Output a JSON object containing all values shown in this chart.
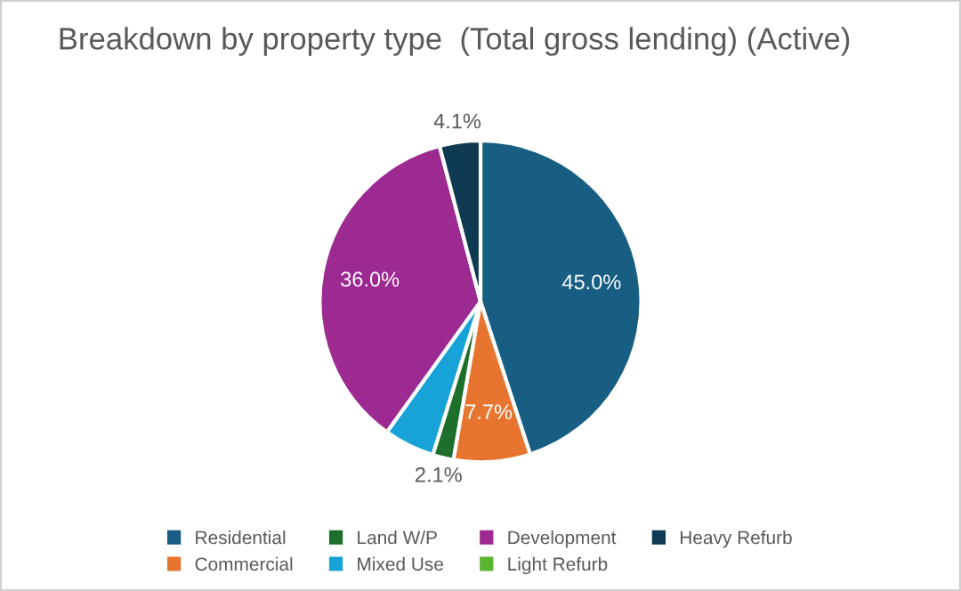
{
  "chart_data": {
    "type": "pie",
    "title": "Breakdown by property type  (Total gross lending) (Active)",
    "categories": [
      "Residential",
      "Commercial",
      "Land W/P",
      "Mixed Use",
      "Development",
      "Light Refurb",
      "Heavy Refurb"
    ],
    "values": [
      45.0,
      7.7,
      2.1,
      5.1,
      36.0,
      0,
      4.1
    ],
    "value_labels": [
      "45.0%",
      "7.7%",
      "2.1%",
      null,
      "36.0%",
      null,
      "4.1%"
    ],
    "colors": [
      "#175e82",
      "#e8752f",
      "#1e6e2c",
      "#17a2d8",
      "#9c2a90",
      "#5ab531",
      "#0e3a52"
    ],
    "legend": "bottom"
  }
}
